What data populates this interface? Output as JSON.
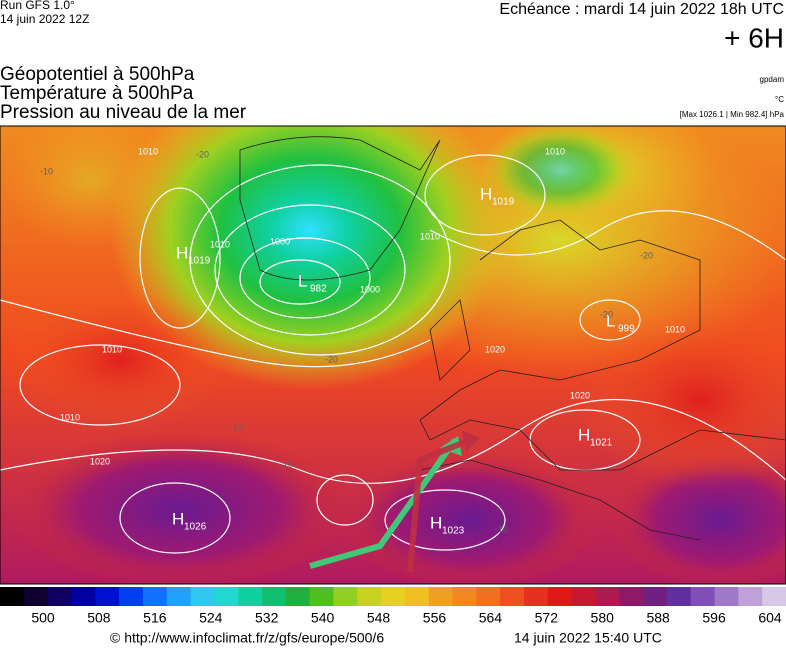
{
  "header": {
    "run": "Run GFS 1.0°",
    "run_date": "14 juin 2022 12Z",
    "forecast": "Echéance : mardi 14 juin 2022 18h UTC",
    "offset": "+ 6H"
  },
  "titles": [
    "Géopotentiel à 500hPa",
    "Température à 500hPa",
    "Pression au niveau de la mer"
  ],
  "units": {
    "geopotential": "gpdam",
    "temperature": "°C",
    "pressure": "[Max 1026.1 | Min 982.4] hPa"
  },
  "centers": [
    {
      "kind": "H",
      "value": 1019
    },
    {
      "kind": "H",
      "value": 1019
    },
    {
      "kind": "L",
      "value": 982
    },
    {
      "kind": "L",
      "value": 999
    },
    {
      "kind": "H",
      "value": 1021
    },
    {
      "kind": "H",
      "value": 1026
    },
    {
      "kind": "H",
      "value": 1023
    }
  ],
  "isobar_labels": [
    1010,
    1000,
    1000,
    1010,
    1010,
    1020,
    1010,
    1010,
    1020,
    1010,
    1020,
    1010
  ],
  "temperature_labels": [
    -10,
    -20,
    -20,
    -20,
    -20,
    -10,
    -10,
    -10
  ],
  "colorbar": {
    "ticks": [
      500,
      508,
      516,
      524,
      532,
      540,
      548,
      556,
      564,
      572,
      580,
      588,
      596,
      604
    ]
  },
  "footer": {
    "url": "© http://www.infoclimat.fr/z/gfs/europe/500/6",
    "timestamp": "14 juin 2022 15:40 UTC"
  }
}
